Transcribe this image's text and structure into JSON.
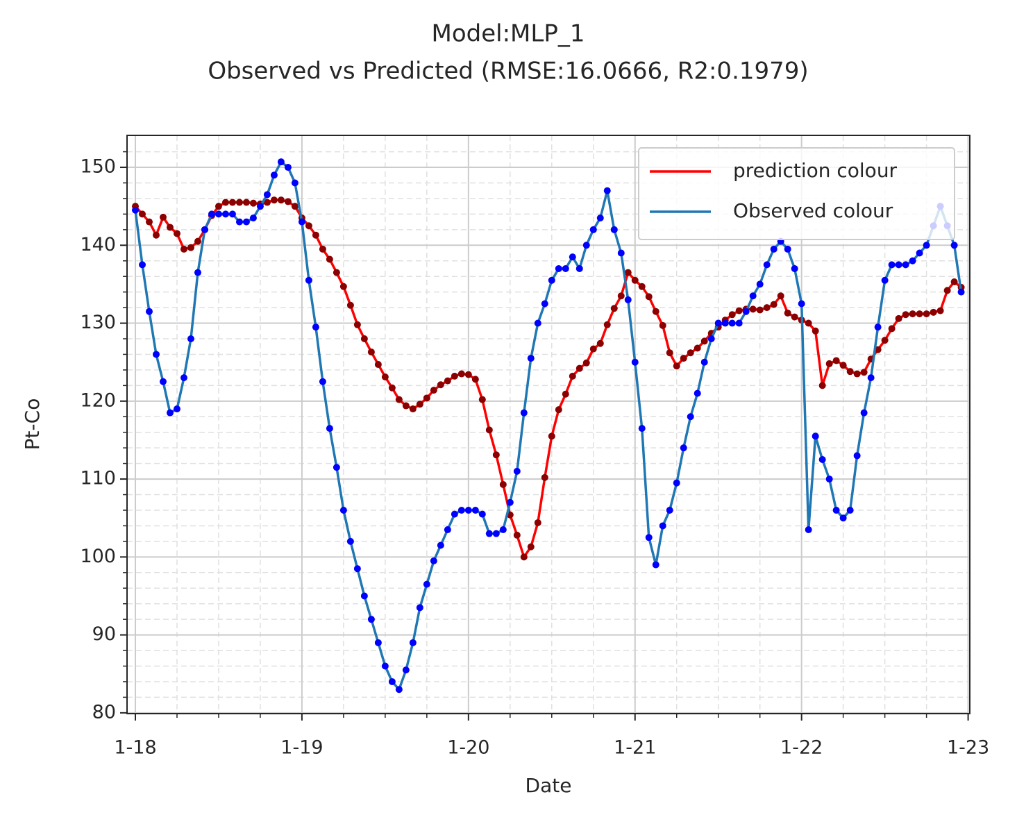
{
  "chart_data": {
    "type": "line",
    "title": "Model:MLP_1",
    "subtitle": "Observed vs Predicted (RMSE:16.0666, R2:0.1979)",
    "xlabel": "Date",
    "ylabel": "Pt-Co",
    "x": [
      2018,
      2018.0417,
      2018.0833,
      2018.125,
      2018.1667,
      2018.2083,
      2018.25,
      2018.2917,
      2018.3333,
      2018.375,
      2018.4167,
      2018.4583,
      2018.5,
      2018.5417,
      2018.5833,
      2018.625,
      2018.6667,
      2018.7083,
      2018.75,
      2018.7917,
      2018.8333,
      2018.875,
      2018.9167,
      2018.9583,
      2019,
      2019.0417,
      2019.0833,
      2019.125,
      2019.1667,
      2019.2083,
      2019.25,
      2019.2917,
      2019.3333,
      2019.375,
      2019.4167,
      2019.4583,
      2019.5,
      2019.5417,
      2019.5833,
      2019.625,
      2019.6667,
      2019.7083,
      2019.75,
      2019.7917,
      2019.8333,
      2019.875,
      2019.9167,
      2019.9583,
      2020,
      2020.0417,
      2020.0833,
      2020.125,
      2020.1667,
      2020.2083,
      2020.25,
      2020.2917,
      2020.3333,
      2020.375,
      2020.4167,
      2020.4583,
      2020.5,
      2020.5417,
      2020.5833,
      2020.625,
      2020.6667,
      2020.7083,
      2020.75,
      2020.7917,
      2020.8333,
      2020.875,
      2020.9167,
      2020.9583,
      2021,
      2021.0417,
      2021.0833,
      2021.125,
      2021.1667,
      2021.2083,
      2021.25,
      2021.2917,
      2021.3333,
      2021.375,
      2021.4167,
      2021.4583,
      2021.5,
      2021.5417,
      2021.5833,
      2021.625,
      2021.6667,
      2021.7083,
      2021.75,
      2021.7917,
      2021.8333,
      2021.875,
      2021.9167,
      2021.9583,
      2022,
      2022.0417,
      2022.0833,
      2022.125,
      2022.1667,
      2022.2083,
      2022.25,
      2022.2917,
      2022.3333,
      2022.375,
      2022.4167,
      2022.4583,
      2022.5,
      2022.5417,
      2022.5833,
      2022.625,
      2022.6667,
      2022.7083,
      2022.75,
      2022.7917,
      2022.8333,
      2022.875,
      2022.9167,
      2022.9583
    ],
    "series": [
      {
        "name": "prediction colour",
        "color": "#ff0000",
        "marker_color": "#8b0000",
        "values": [
          145,
          144,
          143,
          141.3,
          143.6,
          142.3,
          141.5,
          139.5,
          139.7,
          140.5,
          142,
          143.8,
          145,
          145.5,
          145.5,
          145.5,
          145.5,
          145.4,
          145.3,
          145.5,
          145.8,
          145.8,
          145.6,
          145,
          143.5,
          142.5,
          141.3,
          139.5,
          138.2,
          136.5,
          134.7,
          132.3,
          129.8,
          128,
          126.3,
          124.7,
          123.1,
          121.7,
          120.2,
          119.4,
          119,
          119.6,
          120.4,
          121.4,
          122.1,
          122.6,
          123.2,
          123.5,
          123.4,
          122.8,
          120.2,
          116.3,
          113.1,
          109.3,
          105.4,
          102.8,
          100,
          101.3,
          104.4,
          110.2,
          115.5,
          118.9,
          120.9,
          123.2,
          124.2,
          124.9,
          126.7,
          127.4,
          129.8,
          131.9,
          133.5,
          136.5,
          135.5,
          134.7,
          133.4,
          131.5,
          129.7,
          126.2,
          124.5,
          125.5,
          126.2,
          126.8,
          127.7,
          128.7,
          129.5,
          130.4,
          131.1,
          131.6,
          131.8,
          131.8,
          131.7,
          132,
          132.4,
          133.5,
          131.3,
          130.8,
          130.4,
          130,
          129,
          122,
          124.8,
          125.2,
          124.6,
          123.8,
          123.5,
          123.7,
          125.4,
          126.6,
          127.8,
          129.3,
          130.6,
          131.1,
          131.2,
          131.2,
          131.2,
          131.4,
          131.6,
          134.2,
          135.3,
          134.6
        ]
      },
      {
        "name": "Observed colour",
        "color": "#1f77b4",
        "marker_color": "#0000ff",
        "values": [
          144.5,
          137.5,
          131.5,
          126,
          122.5,
          118.5,
          119,
          123,
          128,
          136.5,
          142,
          144,
          144,
          144,
          144,
          143,
          143,
          143.5,
          145,
          146.5,
          149,
          150.7,
          150,
          148,
          143,
          135.5,
          129.5,
          122.5,
          116.5,
          111.5,
          106,
          102,
          98.5,
          95,
          92,
          89,
          86,
          84,
          83,
          85.5,
          89,
          93.5,
          96.5,
          99.5,
          101.5,
          103.5,
          105.5,
          106,
          106,
          106,
          105.5,
          103,
          103,
          103.5,
          107,
          111,
          118.5,
          125.5,
          130,
          132.5,
          135.5,
          137,
          137,
          138.5,
          137,
          140,
          142,
          143.5,
          147,
          142,
          139,
          133,
          125,
          116.5,
          102.5,
          99,
          104,
          106,
          109.5,
          114,
          118,
          121,
          125,
          128,
          130,
          130,
          130,
          130,
          131.5,
          133.5,
          135,
          137.5,
          139.5,
          140.5,
          139.5,
          137,
          132.5,
          103.5,
          115.5,
          112.5,
          110,
          106,
          105,
          106,
          113,
          118.5,
          123,
          129.5,
          135.5,
          137.5,
          137.5,
          137.5,
          138,
          139,
          140,
          142.5,
          145,
          142.5,
          140,
          134
        ]
      }
    ],
    "xlim": [
      2017.95,
      2023.01
    ],
    "ylim": [
      79.9,
      154.1
    ],
    "xticks": [
      {
        "value": 2018,
        "label": "1-18"
      },
      {
        "value": 2019,
        "label": "1-19"
      },
      {
        "value": 2020,
        "label": "1-20"
      },
      {
        "value": 2021,
        "label": "1-21"
      },
      {
        "value": 2022,
        "label": "1-22"
      },
      {
        "value": 2023,
        "label": "1-23"
      }
    ],
    "yticks": [
      80,
      90,
      100,
      110,
      120,
      130,
      140,
      150
    ],
    "xminorticks": [
      2018.25,
      2018.5,
      2018.75,
      2019.25,
      2019.5,
      2019.75,
      2020.25,
      2020.5,
      2020.75,
      2021.25,
      2021.5,
      2021.75,
      2022.25,
      2022.5,
      2022.75
    ],
    "yminorticks": [
      82,
      84,
      86,
      88,
      92,
      94,
      96,
      98,
      102,
      104,
      106,
      108,
      112,
      114,
      116,
      118,
      122,
      124,
      126,
      128,
      132,
      134,
      136,
      138,
      142,
      144,
      146,
      148,
      152
    ],
    "grid": true,
    "legend": "upper right"
  }
}
